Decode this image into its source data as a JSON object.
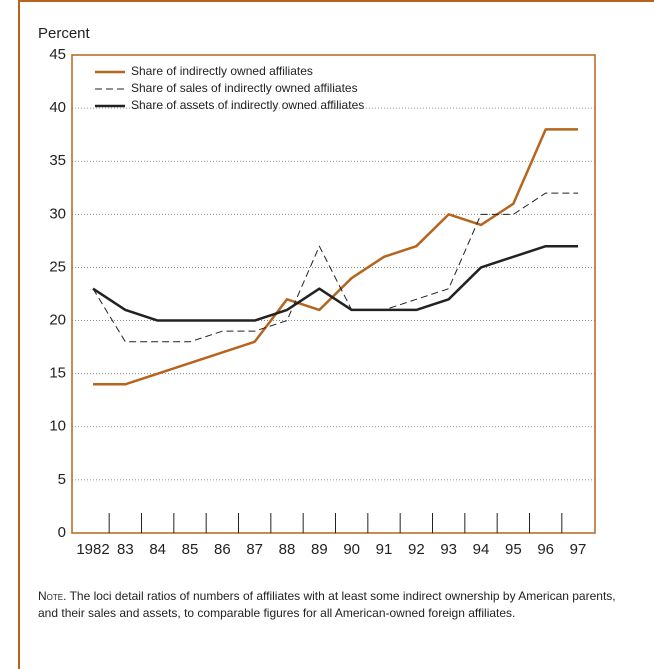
{
  "chart_data": {
    "type": "line",
    "y_axis_label": "Percent",
    "categories": [
      "1982",
      "83",
      "84",
      "85",
      "86",
      "87",
      "88",
      "89",
      "90",
      "91",
      "92",
      "93",
      "94",
      "95",
      "96",
      "97"
    ],
    "series": [
      {
        "name": "Share of indirectly owned affiliates",
        "color": "#b5651d",
        "dash": false,
        "values": [
          14,
          14,
          15,
          16,
          17,
          18,
          22,
          21,
          24,
          26,
          27,
          30,
          29,
          31,
          38,
          38
        ]
      },
      {
        "name": "Share of sales of indirectly owned affiliates",
        "color": "#222222",
        "dash": true,
        "values": [
          23,
          18,
          18,
          18,
          19,
          19,
          20,
          27,
          21,
          21,
          22,
          23,
          30,
          30,
          32,
          32
        ]
      },
      {
        "name": "Share of assets of indirectly owned affiliates",
        "color": "#222222",
        "dash": false,
        "values": [
          23,
          21,
          20,
          20,
          20,
          20,
          21,
          23,
          21,
          21,
          21,
          22,
          25,
          26,
          27,
          27
        ]
      }
    ],
    "ylim": [
      0,
      45
    ],
    "yticks": [
      0,
      5,
      10,
      15,
      20,
      25,
      30,
      35,
      40,
      45
    ],
    "grid": true,
    "legend": "top-left",
    "note_label": "Note.",
    "note": "The loci detail ratios of numbers of affiliates with at least some indirect ownership by American parents, and their sales and assets, to comparable figures for all American-owned foreign affiliates."
  }
}
